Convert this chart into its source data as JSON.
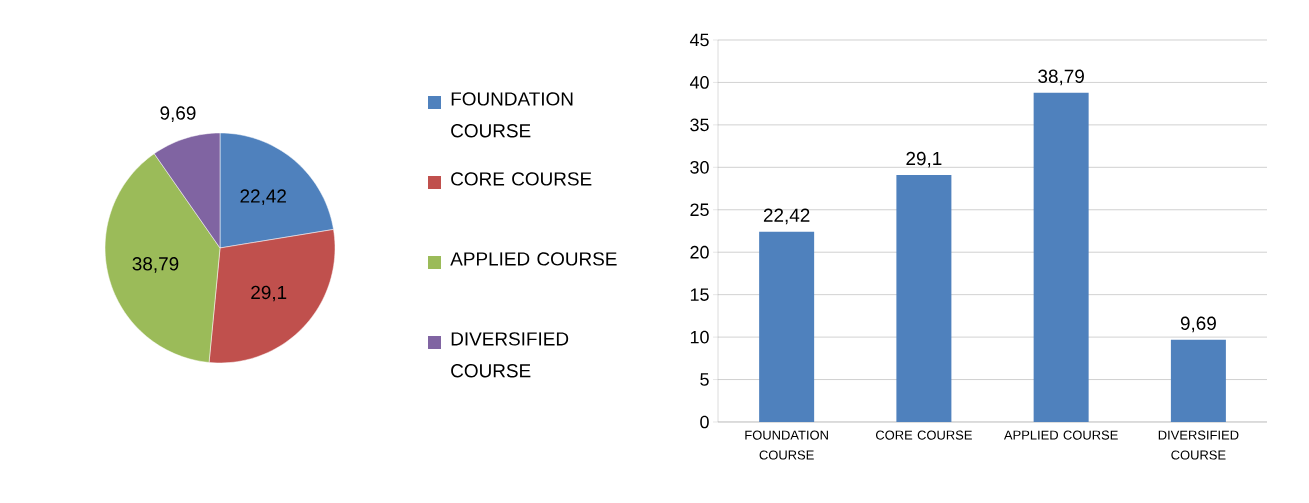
{
  "chart_data": [
    {
      "type": "pie",
      "categories": [
        "FOUNDATION COURSE",
        "CORE COURSE",
        "APPLIED COURSE",
        "DIVERSIFIED COURSE"
      ],
      "values": [
        22.42,
        29.1,
        38.79,
        9.69
      ],
      "value_labels": [
        "22,42",
        "29,1",
        "38,79",
        "9,69"
      ],
      "colors": [
        "#4f81bd",
        "#c0504d",
        "#9bbb59",
        "#8064a2"
      ],
      "legend": "right"
    },
    {
      "type": "bar",
      "categories": [
        "FOUNDATION COURSE",
        "CORE COURSE",
        "APPLIED COURSE",
        "DIVERSIFIED COURSE"
      ],
      "values": [
        22.42,
        29.1,
        38.79,
        9.69
      ],
      "value_labels": [
        "22,42",
        "29,1",
        "38,79",
        "9,69"
      ],
      "color": "#4f81bd",
      "ylim": [
        0,
        45
      ],
      "yticks": [
        0,
        5,
        10,
        15,
        20,
        25,
        30,
        35,
        40,
        45
      ],
      "grid": "y"
    }
  ]
}
